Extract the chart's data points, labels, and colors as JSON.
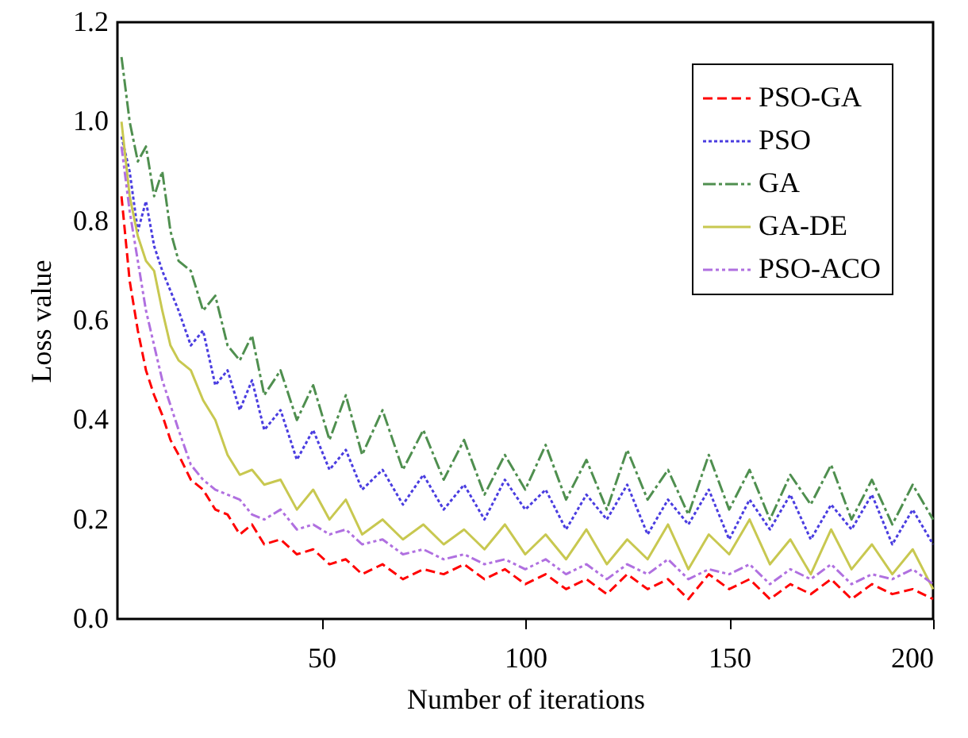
{
  "chart_data": {
    "type": "line",
    "xlabel": "Number of iterations",
    "ylabel": "Loss value",
    "x": [
      1,
      3,
      5,
      7,
      9,
      11,
      13,
      15,
      18,
      21,
      24,
      27,
      30,
      33,
      36,
      40,
      44,
      48,
      52,
      56,
      60,
      65,
      70,
      75,
      80,
      85,
      90,
      95,
      100,
      105,
      110,
      115,
      120,
      125,
      130,
      135,
      140,
      145,
      150,
      155,
      160,
      165,
      170,
      175,
      180,
      185,
      190,
      195,
      200
    ],
    "series": [
      {
        "name": "PSO-GA",
        "color": "#ff0000",
        "line_style": "dashed",
        "values": [
          0.85,
          0.68,
          0.58,
          0.5,
          0.45,
          0.41,
          0.36,
          0.33,
          0.28,
          0.26,
          0.22,
          0.21,
          0.17,
          0.19,
          0.15,
          0.16,
          0.13,
          0.14,
          0.11,
          0.12,
          0.09,
          0.11,
          0.08,
          0.1,
          0.09,
          0.11,
          0.08,
          0.1,
          0.07,
          0.09,
          0.06,
          0.08,
          0.05,
          0.09,
          0.06,
          0.08,
          0.04,
          0.09,
          0.06,
          0.08,
          0.04,
          0.07,
          0.05,
          0.08,
          0.04,
          0.07,
          0.05,
          0.06,
          0.04
        ]
      },
      {
        "name": "PSO",
        "color": "#4a3de0",
        "line_style": "dotted",
        "values": [
          0.97,
          0.9,
          0.78,
          0.84,
          0.75,
          0.7,
          0.66,
          0.62,
          0.55,
          0.58,
          0.47,
          0.5,
          0.42,
          0.48,
          0.38,
          0.42,
          0.32,
          0.38,
          0.3,
          0.34,
          0.26,
          0.3,
          0.23,
          0.29,
          0.22,
          0.27,
          0.2,
          0.28,
          0.22,
          0.26,
          0.18,
          0.25,
          0.2,
          0.27,
          0.17,
          0.24,
          0.19,
          0.26,
          0.16,
          0.24,
          0.18,
          0.25,
          0.16,
          0.23,
          0.18,
          0.25,
          0.15,
          0.22,
          0.15
        ]
      },
      {
        "name": "GA",
        "color": "#4f8f4f",
        "line_style": "dashdot",
        "values": [
          1.13,
          1.0,
          0.92,
          0.95,
          0.85,
          0.9,
          0.78,
          0.72,
          0.7,
          0.62,
          0.65,
          0.55,
          0.52,
          0.57,
          0.45,
          0.5,
          0.4,
          0.47,
          0.36,
          0.45,
          0.33,
          0.42,
          0.3,
          0.38,
          0.28,
          0.36,
          0.25,
          0.33,
          0.26,
          0.35,
          0.24,
          0.32,
          0.22,
          0.34,
          0.24,
          0.3,
          0.21,
          0.33,
          0.22,
          0.3,
          0.2,
          0.29,
          0.23,
          0.31,
          0.2,
          0.28,
          0.19,
          0.27,
          0.2
        ]
      },
      {
        "name": "GA-DE",
        "color": "#c8c850",
        "line_style": "solid",
        "values": [
          1.0,
          0.85,
          0.77,
          0.72,
          0.7,
          0.62,
          0.55,
          0.52,
          0.5,
          0.44,
          0.4,
          0.33,
          0.29,
          0.3,
          0.27,
          0.28,
          0.22,
          0.26,
          0.2,
          0.24,
          0.17,
          0.2,
          0.16,
          0.19,
          0.15,
          0.18,
          0.14,
          0.19,
          0.13,
          0.17,
          0.12,
          0.18,
          0.11,
          0.16,
          0.12,
          0.19,
          0.1,
          0.17,
          0.13,
          0.2,
          0.11,
          0.16,
          0.09,
          0.18,
          0.1,
          0.15,
          0.09,
          0.14,
          0.06
        ]
      },
      {
        "name": "PSO-ACO",
        "color": "#b070e0",
        "line_style": "dashdotdot",
        "values": [
          0.95,
          0.82,
          0.72,
          0.62,
          0.55,
          0.48,
          0.43,
          0.38,
          0.31,
          0.28,
          0.26,
          0.25,
          0.24,
          0.21,
          0.2,
          0.22,
          0.18,
          0.19,
          0.17,
          0.18,
          0.15,
          0.16,
          0.13,
          0.14,
          0.12,
          0.13,
          0.11,
          0.12,
          0.1,
          0.12,
          0.09,
          0.11,
          0.08,
          0.11,
          0.09,
          0.12,
          0.08,
          0.1,
          0.09,
          0.11,
          0.07,
          0.1,
          0.08,
          0.11,
          0.07,
          0.09,
          0.08,
          0.1,
          0.07
        ]
      }
    ],
    "xlim": [
      0,
      200
    ],
    "xticks": [
      50,
      100,
      150,
      200
    ],
    "ylim": [
      0,
      1.2
    ],
    "yticks": [
      {
        "value": 0,
        "label": "0.0"
      },
      {
        "value": 0.2,
        "label": "0.2"
      },
      {
        "value": 0.4,
        "label": "0.4"
      },
      {
        "value": 0.6,
        "label": "0.6"
      },
      {
        "value": 0.8,
        "label": "0.8"
      },
      {
        "value": 1.0,
        "label": "1.0"
      },
      {
        "value": 1.2,
        "label": "1.2"
      }
    ],
    "legend": "top right",
    "grid": false
  }
}
